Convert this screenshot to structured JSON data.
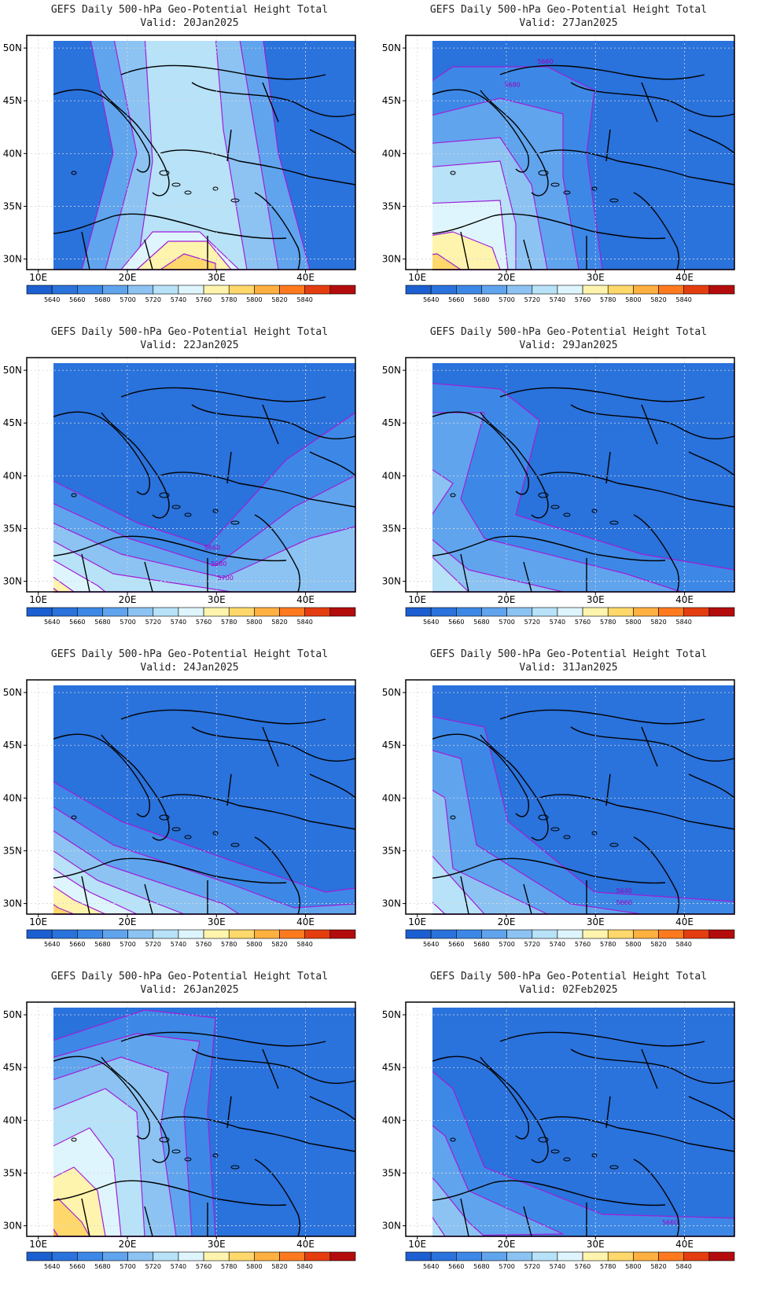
{
  "colorbar": {
    "levels": [
      "5640",
      "5660",
      "5680",
      "5700",
      "5720",
      "5740",
      "5760",
      "5780",
      "5800",
      "5820",
      "5840"
    ],
    "colors": [
      "#1c5fd0",
      "#2a72dc",
      "#3d88e6",
      "#60a4ee",
      "#8cc3f3",
      "#b7e2f8",
      "#dff5fd",
      "#fff4ad",
      "#ffd86b",
      "#ffb040",
      "#ff7a1f",
      "#e43d10",
      "#b40c0c"
    ]
  },
  "axes": {
    "lat_labels": [
      "50N",
      "45N",
      "40N",
      "35N",
      "30N"
    ],
    "lon_labels": [
      "10E",
      "20E",
      "30E",
      "40E"
    ]
  },
  "contour_color": "#a11ed8",
  "panels": [
    {
      "title": "GEFS Daily 500-hPa Geo-Potential Height Total",
      "valid": "Valid: 20Jan2025",
      "contour_labels": []
    },
    {
      "title": "GEFS Daily 500-hPa Geo-Potential Height Total",
      "valid": "Valid: 27Jan2025",
      "contour_labels": [
        "5660",
        "5680"
      ]
    },
    {
      "title": "GEFS Daily 500-hPa Geo-Potential Height Total",
      "valid": "Valid: 22Jan2025",
      "contour_labels": [
        "5660",
        "5680",
        "5700"
      ]
    },
    {
      "title": "GEFS Daily 500-hPa Geo-Potential Height Total",
      "valid": "Valid: 29Jan2025",
      "contour_labels": []
    },
    {
      "title": "GEFS Daily 500-hPa Geo-Potential Height Total",
      "valid": "Valid: 24Jan2025",
      "contour_labels": []
    },
    {
      "title": "GEFS Daily 500-hPa Geo-Potential Height Total",
      "valid": "Valid: 31Jan2025",
      "contour_labels": [
        "5640",
        "5660"
      ]
    },
    {
      "title": "GEFS Daily 500-hPa Geo-Potential Height Total",
      "valid": "Valid: 26Jan2025",
      "contour_labels": []
    },
    {
      "title": "GEFS Daily 500-hPa Geo-Potential Height Total",
      "valid": "Valid: 02Feb2025",
      "contour_labels": [
        "5660"
      ]
    }
  ]
}
